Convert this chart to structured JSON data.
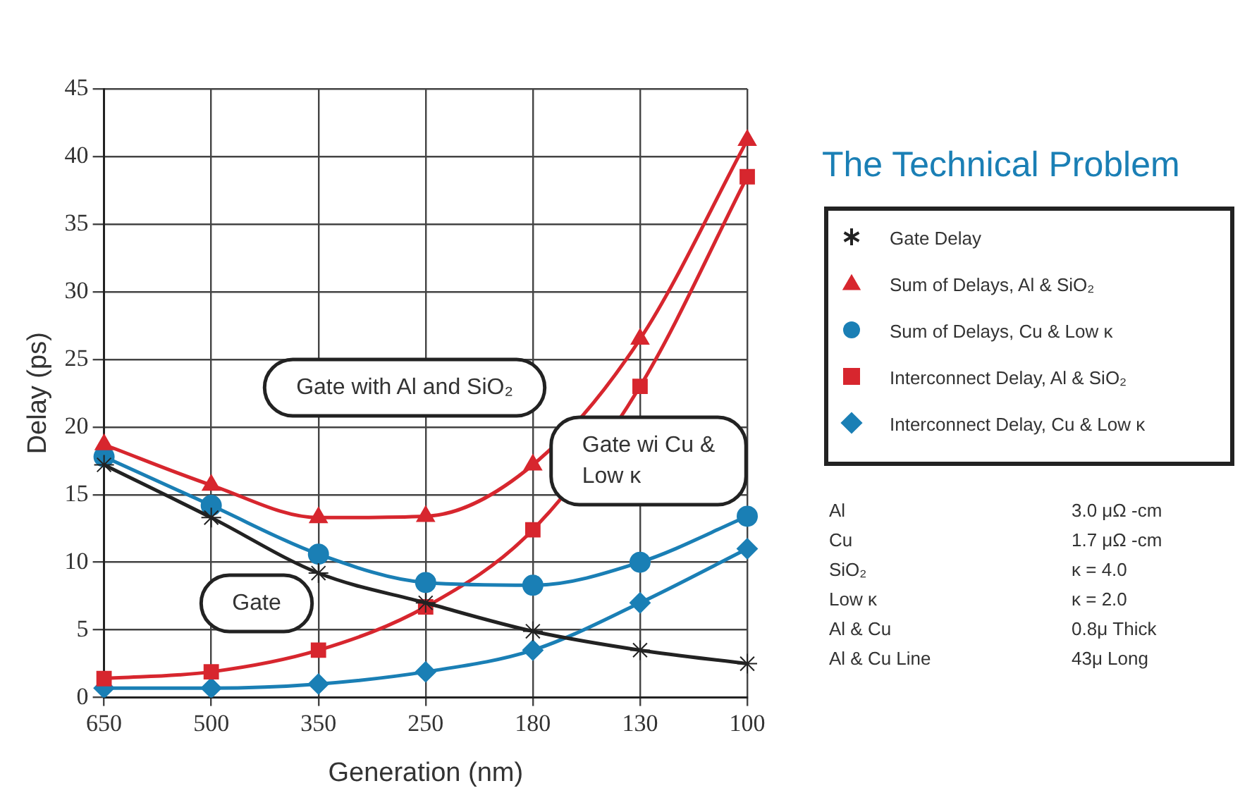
{
  "chart_data": {
    "type": "line",
    "title": "The Technical Problem",
    "xlabel": "Generation (nm)",
    "ylabel": "Delay (ps)",
    "categories": [
      "650",
      "500",
      "350",
      "250",
      "180",
      "130",
      "100"
    ],
    "series": [
      {
        "name": "Gate Delay",
        "color": "#222222",
        "marker": "cross",
        "values": [
          17.2,
          13.3,
          9.2,
          7.0,
          4.9,
          3.5,
          2.5
        ]
      },
      {
        "name": "Sum of Delays, Al & SiO₂",
        "color": "#d7262e",
        "marker": "triangle",
        "values": [
          18.7,
          15.7,
          13.3,
          13.4,
          17.2,
          26.5,
          41.2
        ]
      },
      {
        "name": "Sum of Delays, Cu & Low κ",
        "color": "#1a7fb5",
        "marker": "circle",
        "values": [
          17.8,
          14.2,
          10.6,
          8.5,
          8.3,
          10.0,
          13.4
        ]
      },
      {
        "name": "Interconnect Delay, Al & SiO₂",
        "color": "#d7262e",
        "marker": "square",
        "values": [
          1.4,
          1.9,
          3.5,
          6.7,
          12.4,
          23.0,
          38.5
        ]
      },
      {
        "name": "Interconnect Delay, Cu & Low κ",
        "color": "#1a7fb5",
        "marker": "diamond",
        "values": [
          0.7,
          0.7,
          1.0,
          1.9,
          3.5,
          7.0,
          11.0
        ]
      }
    ],
    "ylim": [
      0,
      45
    ],
    "yticks": [
      0,
      5,
      10,
      15,
      20,
      25,
      30,
      35,
      40,
      45
    ],
    "grid": true,
    "legend": "right",
    "annotations": [
      "Gate with Al and SiO₂",
      "Gate",
      "Gate wi Cu & Low κ",
      "Al",
      "3.0 μΩ -cm",
      "Cu",
      "1.7 μΩ -cm",
      "SiO₂",
      "κ = 4.0",
      "Low κ",
      "κ = 2.0",
      "Al & Cu",
      "0.8μ Thick",
      "Al & Cu Line",
      "43μ Long"
    ]
  }
}
